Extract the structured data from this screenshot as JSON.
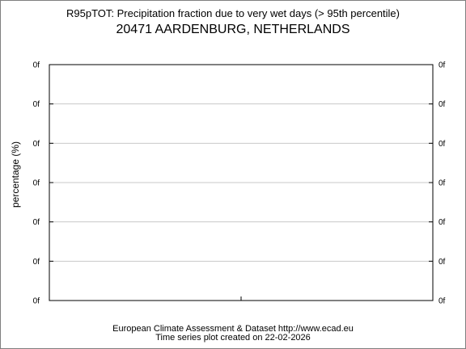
{
  "chart_data": {
    "type": "line",
    "title": "R95pTOT: Precipitation fraction due to very wet days (> 95th percentile)",
    "subtitle": "20471 AARDENBURG, NETHERLANDS",
    "ylabel": "percentage (%)",
    "xlabel": "",
    "y_tick_labels": [
      "0f",
      "0f",
      "0f",
      "0f",
      "0f",
      "0f",
      "0f"
    ],
    "x_tick_labels": [],
    "series": [],
    "grid": true
  },
  "footer": {
    "line1": "European Climate Assessment & Dataset  http://www.ecad.eu",
    "line2": "Time series plot created on 22-02-2026"
  },
  "colors": {
    "axis": "#000000",
    "grid": "#c8c8c8",
    "frame": "#7f7f7f"
  }
}
